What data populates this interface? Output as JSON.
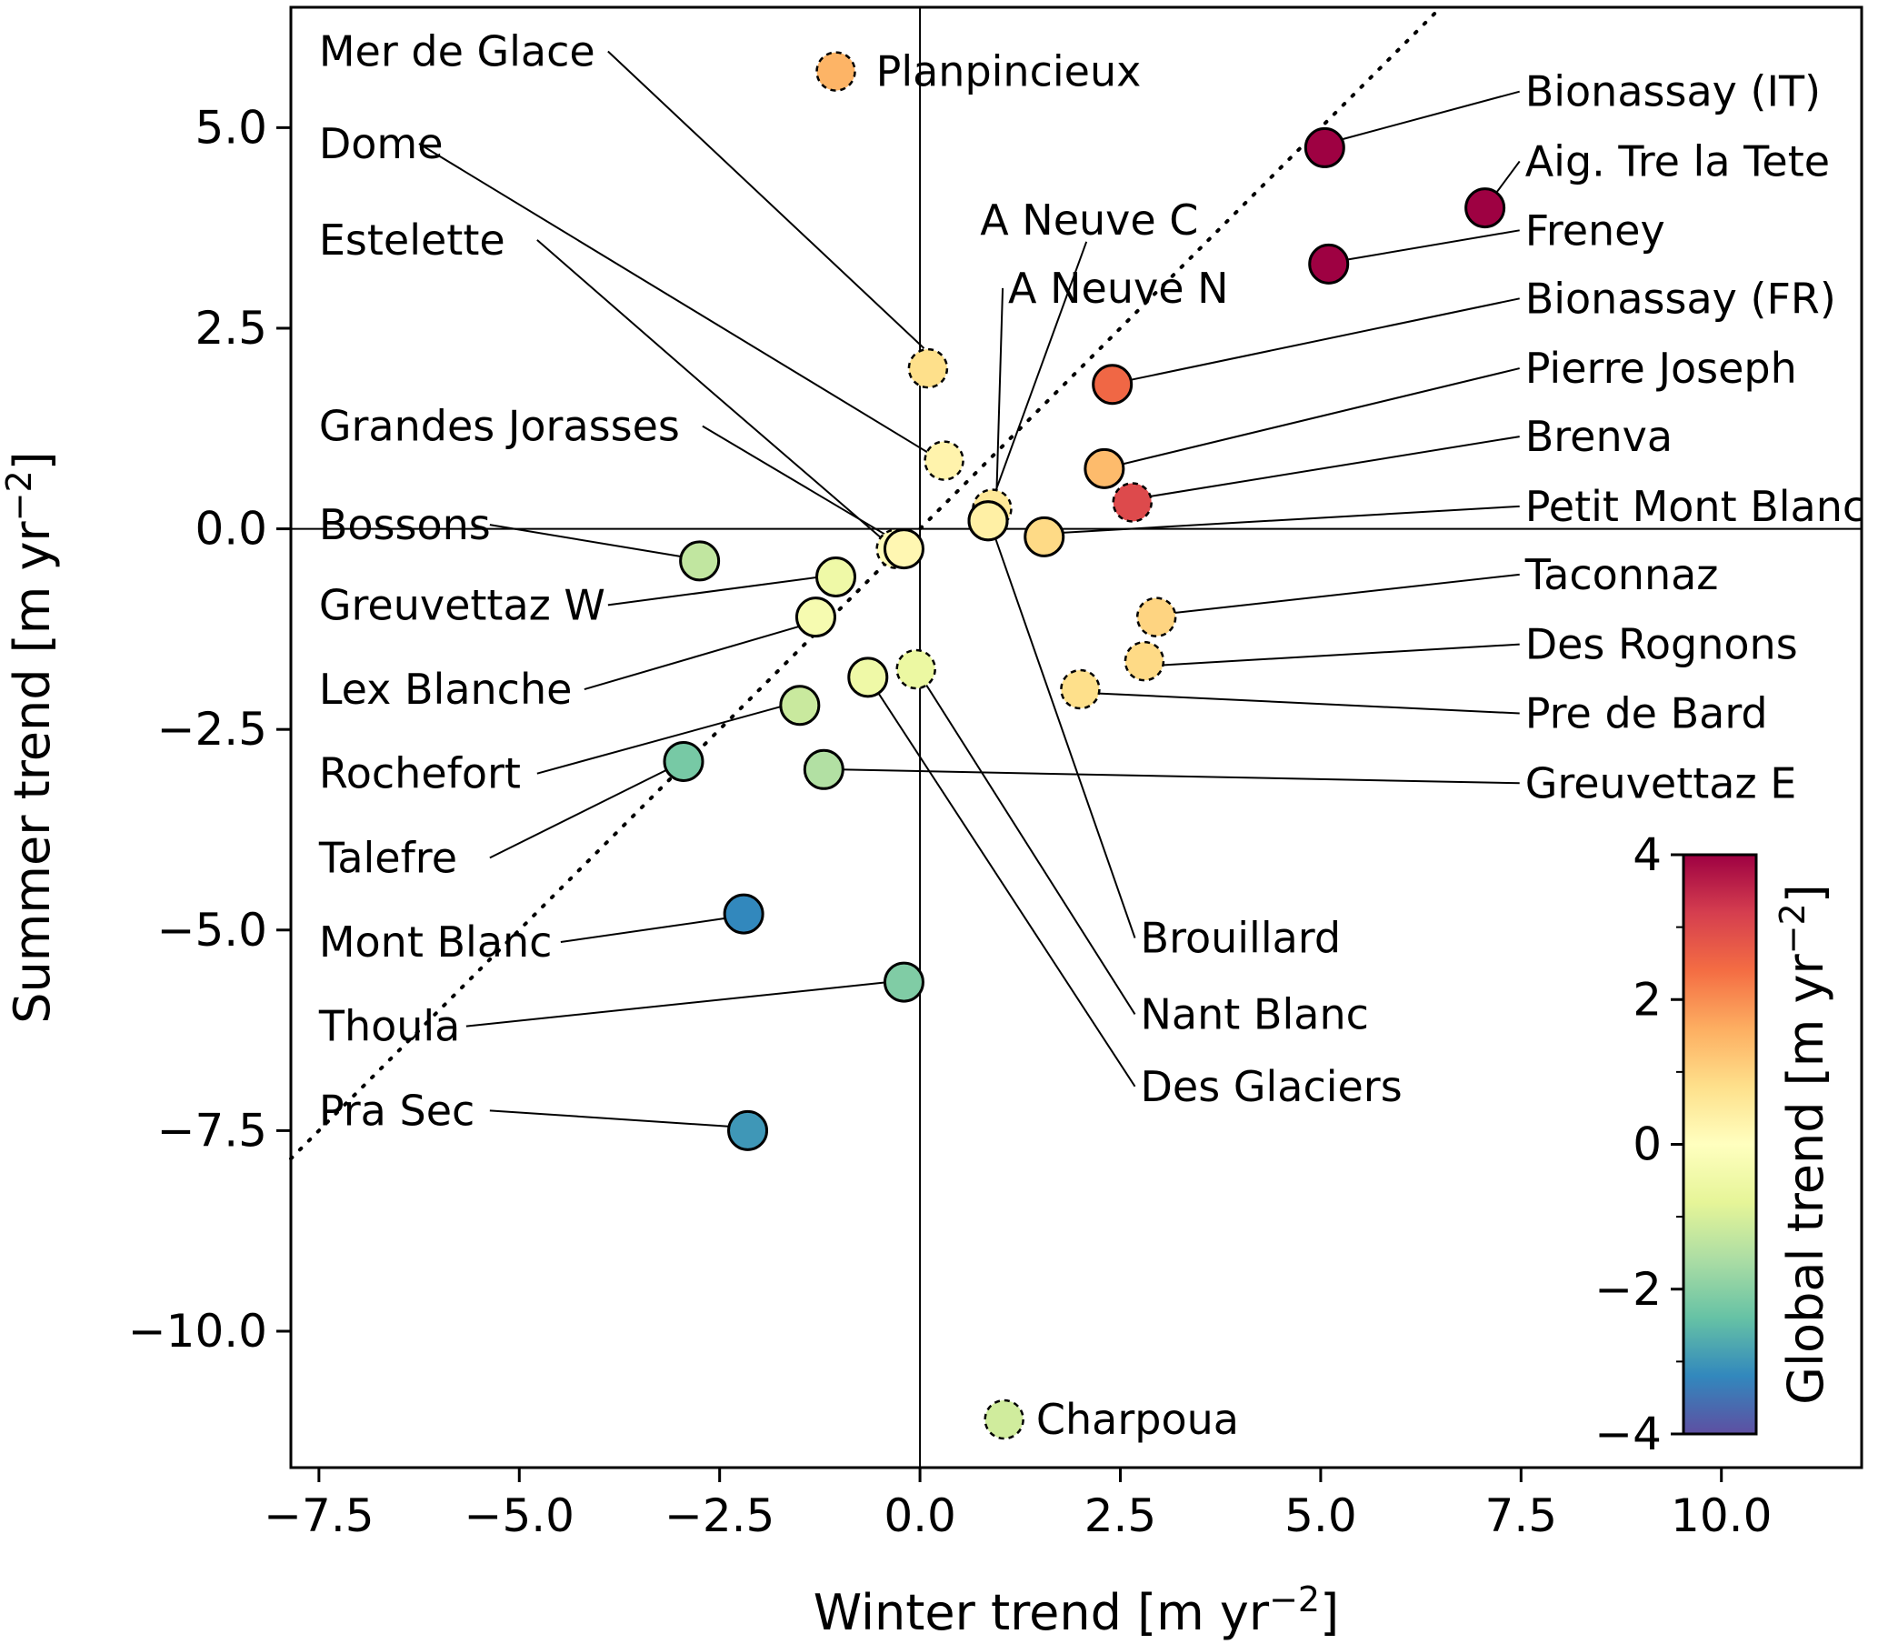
{
  "chart_data": {
    "type": "scatter",
    "xlabel": "Winter trend [m yr⁻²]",
    "ylabel": "Summer trend [m yr⁻²]",
    "xlim": [
      -7.85,
      11.75
    ],
    "ylim": [
      -11.7,
      6.5
    ],
    "xticks": [
      -7.5,
      -5.0,
      -2.5,
      0.0,
      2.5,
      5.0,
      7.5,
      10.0
    ],
    "xtick_labels": [
      "−7.5",
      "−5.0",
      "−2.5",
      "0.0",
      "2.5",
      "5.0",
      "7.5",
      "10.0"
    ],
    "yticks": [
      5.0,
      2.5,
      0.0,
      -2.5,
      -5.0,
      -7.5,
      -10.0
    ],
    "ytick_labels": [
      "5.0",
      "2.5",
      "0.0",
      "−2.5",
      "−5.0",
      "−7.5",
      "−10.0"
    ],
    "reference_line": "1:1 dotted diagonal",
    "colorbar": {
      "label": "Global trend [m yr⁻²]",
      "range": [
        -4,
        4
      ],
      "ticks": [
        4,
        2,
        0,
        -2,
        -4
      ],
      "tick_labels": [
        "4",
        "2",
        "0",
        "−2",
        "−4"
      ],
      "colormap": "Spectral_r",
      "colors": [
        "#5e4fa2",
        "#3288bd",
        "#66c2a5",
        "#abdda4",
        "#e6f598",
        "#ffffbf",
        "#fee08b",
        "#fdae61",
        "#f46d43",
        "#d53e4f",
        "#9e0142"
      ]
    },
    "points": [
      {
        "name": "Planpincieux",
        "x": -1.05,
        "y": 5.7,
        "c": 1.5,
        "dashed": true
      },
      {
        "name": "Mer de Glace",
        "x": 0.1,
        "y": 2.0,
        "c": 0.8,
        "dashed": true
      },
      {
        "name": "Dome",
        "x": 0.3,
        "y": 0.85,
        "c": 0.3,
        "dashed": true
      },
      {
        "name": "Estelette",
        "x": -0.3,
        "y": -0.25,
        "c": 0.1,
        "dashed": true
      },
      {
        "name": "Grandes Jorasses",
        "x": -0.2,
        "y": -0.25,
        "c": 0.2,
        "dashed": false
      },
      {
        "name": "A Neuve C",
        "x": 0.9,
        "y": 0.25,
        "c": 0.6,
        "dashed": true
      },
      {
        "name": "A Neuve N",
        "x": 0.85,
        "y": 0.1,
        "c": 0.4,
        "dashed": false
      },
      {
        "name": "Brouillard",
        "x": 0.85,
        "y": 0.1,
        "c": 0.4,
        "dashed": false
      },
      {
        "name": "Petit Mont Blanc",
        "x": 1.55,
        "y": -0.1,
        "c": 0.9,
        "dashed": false
      },
      {
        "name": "Bionassay (IT)",
        "x": 5.05,
        "y": 4.75,
        "c": 4.2,
        "dashed": false
      },
      {
        "name": "Aig. Tre la Tete",
        "x": 7.05,
        "y": 4.0,
        "c": 4.2,
        "dashed": false
      },
      {
        "name": "Freney",
        "x": 5.1,
        "y": 3.3,
        "c": 4.0,
        "dashed": false
      },
      {
        "name": "Bionassay (FR)",
        "x": 2.4,
        "y": 1.8,
        "c": 2.5,
        "dashed": false
      },
      {
        "name": "Pierre Joseph",
        "x": 2.3,
        "y": 0.75,
        "c": 1.4,
        "dashed": false
      },
      {
        "name": "Brenva",
        "x": 2.65,
        "y": 0.33,
        "c": 3.0,
        "dashed": true
      },
      {
        "name": "Taconnaz",
        "x": 2.95,
        "y": -1.1,
        "c": 1.0,
        "dashed": true
      },
      {
        "name": "Des Rognons",
        "x": 2.8,
        "y": -1.65,
        "c": 0.9,
        "dashed": true
      },
      {
        "name": "Pre de Bard",
        "x": 2.0,
        "y": -2.0,
        "c": 0.8,
        "dashed": true
      },
      {
        "name": "Bossons",
        "x": -2.75,
        "y": -0.4,
        "c": -1.3,
        "dashed": false
      },
      {
        "name": "Greuvettaz W",
        "x": -1.05,
        "y": -0.6,
        "c": -0.5,
        "dashed": false
      },
      {
        "name": "Lex Blanche",
        "x": -1.3,
        "y": -1.1,
        "c": -0.3,
        "dashed": false
      },
      {
        "name": "Rochefort",
        "x": -1.5,
        "y": -2.2,
        "c": -1.2,
        "dashed": false
      },
      {
        "name": "Talefre",
        "x": -2.95,
        "y": -2.9,
        "c": -2.2,
        "dashed": false
      },
      {
        "name": "Greuvettaz E",
        "x": -1.2,
        "y": -3.0,
        "c": -1.5,
        "dashed": false
      },
      {
        "name": "Des Glaciers",
        "x": -0.65,
        "y": -1.85,
        "c": -0.5,
        "dashed": false
      },
      {
        "name": "Nant Blanc",
        "x": -0.05,
        "y": -1.75,
        "c": -0.6,
        "dashed": true
      },
      {
        "name": "Mont Blanc",
        "x": -2.2,
        "y": -4.8,
        "c": -3.2,
        "dashed": false
      },
      {
        "name": "Thoula",
        "x": -0.2,
        "y": -5.65,
        "c": -2.1,
        "dashed": false
      },
      {
        "name": "Pra Sec",
        "x": -2.15,
        "y": -7.5,
        "c": -3.0,
        "dashed": false
      },
      {
        "name": "Charpoua",
        "x": 1.05,
        "y": -11.1,
        "c": -1.1,
        "dashed": true
      }
    ],
    "labels": [
      {
        "name": "Mer de Glace",
        "side": "left",
        "lx": -7.5,
        "ly": 5.95,
        "anchor": [
          0.05,
          2.25
        ],
        "elbow": null
      },
      {
        "name": "Dome",
        "side": "left",
        "lx": -7.5,
        "ly": 4.8,
        "anchor": [
          0.1,
          0.95
        ],
        "elbow": null
      },
      {
        "name": "Estelette",
        "side": "left",
        "lx": -7.5,
        "ly": 3.6,
        "anchor": [
          -0.5,
          -0.1
        ],
        "elbow": [
          -2.65,
          1.75
        ]
      },
      {
        "name": "Grandes Jorasses",
        "side": "left",
        "lx": -7.5,
        "ly": 1.28,
        "anchor": [
          -0.3,
          -0.15
        ],
        "elbow": null
      },
      {
        "name": "Bossons",
        "side": "left",
        "lx": -7.5,
        "ly": 0.05,
        "anchor": [
          -2.95,
          -0.35
        ],
        "elbow": null
      },
      {
        "name": "Greuvettaz W",
        "side": "left",
        "lx": -7.5,
        "ly": -0.95,
        "anchor": [
          -1.25,
          -0.6
        ],
        "elbow": null
      },
      {
        "name": "Lex Blanche",
        "side": "left",
        "lx": -7.5,
        "ly": -2.0,
        "anchor": [
          -1.45,
          -1.2
        ],
        "elbow": null
      },
      {
        "name": "Rochefort",
        "side": "left",
        "lx": -7.5,
        "ly": -3.05,
        "anchor": [
          -1.75,
          -2.22
        ],
        "elbow": null
      },
      {
        "name": "Talefre",
        "side": "left",
        "lx": -7.5,
        "ly": -4.1,
        "anchor": [
          -3.05,
          -2.95
        ],
        "elbow": null
      },
      {
        "name": "Mont Blanc",
        "side": "left",
        "lx": -7.5,
        "ly": -5.15,
        "anchor": [
          -2.4,
          -4.85
        ],
        "elbow": null
      },
      {
        "name": "Thoula",
        "side": "left",
        "lx": -7.5,
        "ly": -6.2,
        "anchor": [
          -0.4,
          -5.65
        ],
        "elbow": null
      },
      {
        "name": "Pra Sec",
        "side": "left",
        "lx": -7.5,
        "ly": -7.25,
        "anchor": [
          -2.35,
          -7.45
        ],
        "elbow": null
      },
      {
        "name": "Planpincieux",
        "side": "left",
        "lx": -0.55,
        "ly": 5.7,
        "anchor": null,
        "elbow": null
      },
      {
        "name": "A Neuve C",
        "side": "left",
        "lx": 0.75,
        "ly": 3.85,
        "anchor": [
          0.9,
          0.35
        ],
        "elbow": null
      },
      {
        "name": "A Neuve N",
        "side": "left",
        "lx": 1.1,
        "ly": 3.0,
        "anchor": [
          0.95,
          0.25
        ],
        "elbow": null
      },
      {
        "name": "Bionassay (IT)",
        "side": "left",
        "lx": 7.55,
        "ly": 5.45,
        "anchor": [
          5.25,
          4.85
        ],
        "elbow": null
      },
      {
        "name": "Aig. Tre la Tete",
        "side": "left",
        "lx": 7.55,
        "ly": 4.58,
        "anchor": [
          7.2,
          4.2
        ],
        "elbow": null
      },
      {
        "name": "Freney",
        "side": "left",
        "lx": 7.55,
        "ly": 3.72,
        "anchor": [
          5.3,
          3.35
        ],
        "elbow": null
      },
      {
        "name": "Bionassay (FR)",
        "side": "left",
        "lx": 7.55,
        "ly": 2.87,
        "anchor": [
          2.6,
          1.85
        ],
        "elbow": null
      },
      {
        "name": "Pierre Joseph",
        "side": "left",
        "lx": 7.55,
        "ly": 2.0,
        "anchor": [
          2.5,
          0.8
        ],
        "elbow": null
      },
      {
        "name": "Brenva",
        "side": "left",
        "lx": 7.55,
        "ly": 1.15,
        "anchor": [
          2.85,
          0.4
        ],
        "elbow": null
      },
      {
        "name": "Petit Mont Blanc",
        "side": "left",
        "lx": 7.55,
        "ly": 0.28,
        "anchor": [
          1.75,
          -0.05
        ],
        "elbow": null
      },
      {
        "name": "Taconnaz",
        "side": "left",
        "lx": 7.55,
        "ly": -0.57,
        "anchor": [
          3.15,
          -1.05
        ],
        "elbow": null
      },
      {
        "name": "Des Rognons",
        "side": "left",
        "lx": 7.55,
        "ly": -1.44,
        "anchor": [
          3.0,
          -1.7
        ],
        "elbow": null
      },
      {
        "name": "Pre de Bard",
        "side": "left",
        "lx": 7.55,
        "ly": -2.3,
        "anchor": [
          2.2,
          -2.05
        ],
        "elbow": null
      },
      {
        "name": "Greuvettaz E",
        "side": "left",
        "lx": 7.55,
        "ly": -3.17,
        "anchor": [
          -1.0,
          -3.0
        ],
        "elbow": null
      },
      {
        "name": "Brouillard",
        "side": "left",
        "lx": 2.75,
        "ly": -5.1,
        "anchor": [
          0.9,
          0.0
        ],
        "elbow": null
      },
      {
        "name": "Nant Blanc",
        "side": "left",
        "lx": 2.75,
        "ly": -6.05,
        "anchor": [
          0.05,
          -1.9
        ],
        "elbow": null
      },
      {
        "name": "Des Glaciers",
        "side": "left",
        "lx": 2.75,
        "ly": -6.95,
        "anchor": [
          -0.55,
          -2.0
        ],
        "elbow": null
      },
      {
        "name": "Charpoua",
        "side": "left",
        "lx": 1.45,
        "ly": -11.1,
        "anchor": null,
        "elbow": null
      }
    ]
  }
}
